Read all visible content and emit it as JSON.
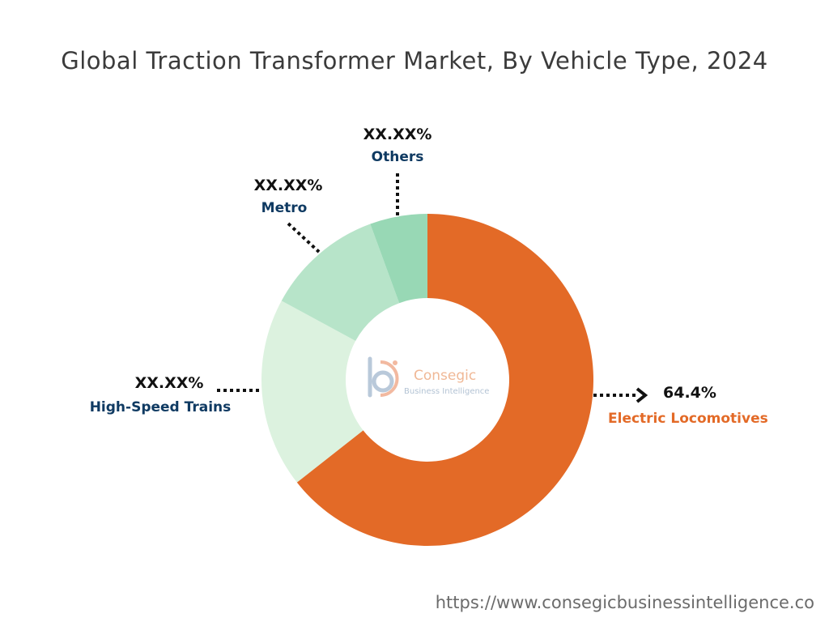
{
  "chart_data": {
    "type": "pie",
    "title": "Global Traction Transformer Market, By Vehicle Type, 2024",
    "donut": true,
    "slices": [
      {
        "name": "Electric Locomotives",
        "value": 64.4,
        "label": "64.4%",
        "color": "#e36a27",
        "label_color": "#e36a27"
      },
      {
        "name": "High-Speed Trains",
        "value": 18.5,
        "label": "XX.XX%",
        "color": "#dcf2df",
        "label_color": "#0f3a62"
      },
      {
        "name": "Metro",
        "value": 11.5,
        "label": "XX.XX%",
        "color": "#b7e4c9",
        "label_color": "#0f3a62"
      },
      {
        "name": "Others",
        "value": 5.6,
        "label": "XX.XX%",
        "color": "#98d8b5",
        "label_color": "#0f3a62"
      }
    ]
  },
  "logo": {
    "name": "Consegic",
    "tagline": "Business Intelligence"
  },
  "source_url": "https://www.consegicbusinessintelligence.co"
}
